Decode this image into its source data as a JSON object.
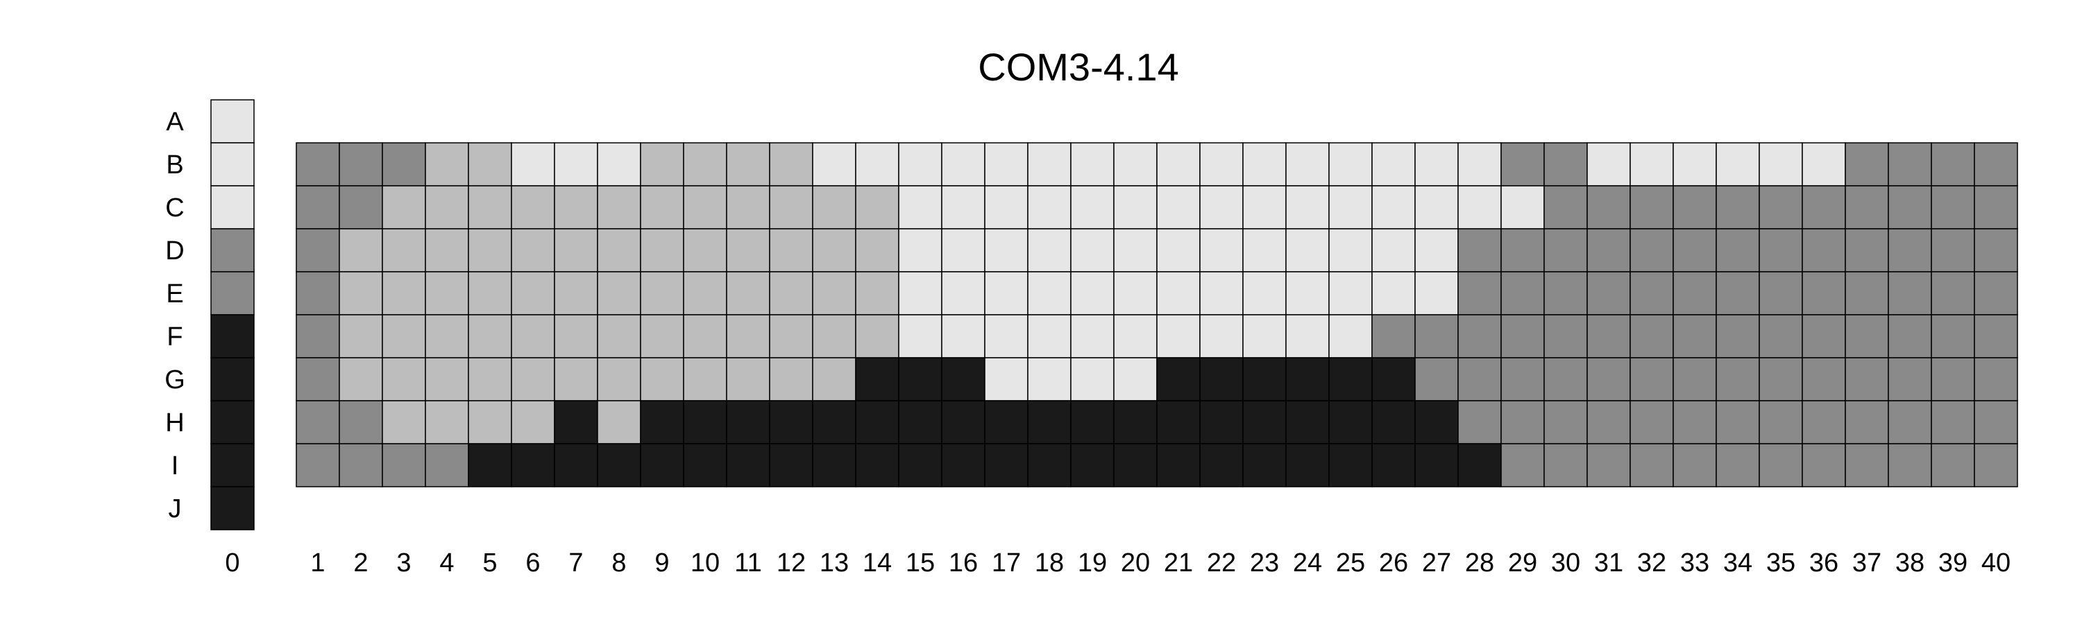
{
  "chart_data": {
    "type": "heatmap",
    "title": "COM3-4.14",
    "palette": {
      "1": "#e6e6e6",
      "2": "#bdbdbd",
      "3": "#8a8a8a",
      "4": "#1a1a1a"
    },
    "key_column": {
      "label": "0",
      "rows": [
        "A",
        "B",
        "C",
        "D",
        "E",
        "F",
        "G",
        "H",
        "I",
        "J"
      ],
      "levels": [
        1,
        1,
        1,
        3,
        3,
        4,
        4,
        4,
        4,
        4
      ]
    },
    "rows": [
      "B",
      "C",
      "D",
      "E",
      "F",
      "G",
      "H",
      "I"
    ],
    "columns": [
      "1",
      "2",
      "3",
      "4",
      "5",
      "6",
      "7",
      "8",
      "9",
      "10",
      "11",
      "12",
      "13",
      "14",
      "15",
      "16",
      "17",
      "18",
      "19",
      "20",
      "21",
      "22",
      "23",
      "24",
      "25",
      "26",
      "27",
      "28",
      "29",
      "30",
      "31",
      "32",
      "33",
      "34",
      "35",
      "36",
      "37",
      "38",
      "39",
      "40"
    ],
    "grid": [
      [
        3,
        3,
        3,
        2,
        2,
        1,
        1,
        1,
        2,
        2,
        2,
        2,
        1,
        1,
        1,
        1,
        1,
        1,
        1,
        1,
        1,
        1,
        1,
        1,
        1,
        1,
        1,
        1,
        3,
        3,
        1,
        1,
        1,
        1,
        1,
        1,
        3,
        3,
        3,
        3
      ],
      [
        3,
        3,
        2,
        2,
        2,
        2,
        2,
        2,
        2,
        2,
        2,
        2,
        2,
        2,
        1,
        1,
        1,
        1,
        1,
        1,
        1,
        1,
        1,
        1,
        1,
        1,
        1,
        1,
        1,
        3,
        3,
        3,
        3,
        3,
        3,
        3,
        3,
        3,
        3,
        3
      ],
      [
        3,
        2,
        2,
        2,
        2,
        2,
        2,
        2,
        2,
        2,
        2,
        2,
        2,
        2,
        1,
        1,
        1,
        1,
        1,
        1,
        1,
        1,
        1,
        1,
        1,
        1,
        1,
        3,
        3,
        3,
        3,
        3,
        3,
        3,
        3,
        3,
        3,
        3,
        3,
        3
      ],
      [
        3,
        2,
        2,
        2,
        2,
        2,
        2,
        2,
        2,
        2,
        2,
        2,
        2,
        2,
        1,
        1,
        1,
        1,
        1,
        1,
        1,
        1,
        1,
        1,
        1,
        1,
        1,
        3,
        3,
        3,
        3,
        3,
        3,
        3,
        3,
        3,
        3,
        3,
        3,
        3
      ],
      [
        3,
        2,
        2,
        2,
        2,
        2,
        2,
        2,
        2,
        2,
        2,
        2,
        2,
        2,
        1,
        1,
        1,
        1,
        1,
        1,
        1,
        1,
        1,
        1,
        1,
        3,
        3,
        3,
        3,
        3,
        3,
        3,
        3,
        3,
        3,
        3,
        3,
        3,
        3,
        3
      ],
      [
        3,
        2,
        2,
        2,
        2,
        2,
        2,
        2,
        2,
        2,
        2,
        2,
        2,
        4,
        4,
        4,
        1,
        1,
        1,
        1,
        4,
        4,
        4,
        4,
        4,
        4,
        3,
        3,
        3,
        3,
        3,
        3,
        3,
        3,
        3,
        3,
        3,
        3,
        3,
        3
      ],
      [
        3,
        3,
        2,
        2,
        2,
        2,
        4,
        2,
        4,
        4,
        4,
        4,
        4,
        4,
        4,
        4,
        4,
        4,
        4,
        4,
        4,
        4,
        4,
        4,
        4,
        4,
        4,
        3,
        3,
        3,
        3,
        3,
        3,
        3,
        3,
        3,
        3,
        3,
        3,
        3
      ],
      [
        3,
        3,
        3,
        3,
        4,
        4,
        4,
        4,
        4,
        4,
        4,
        4,
        4,
        4,
        4,
        4,
        4,
        4,
        4,
        4,
        4,
        4,
        4,
        4,
        4,
        4,
        4,
        4,
        3,
        3,
        3,
        3,
        3,
        3,
        3,
        3,
        3,
        3,
        3,
        3
      ]
    ]
  }
}
